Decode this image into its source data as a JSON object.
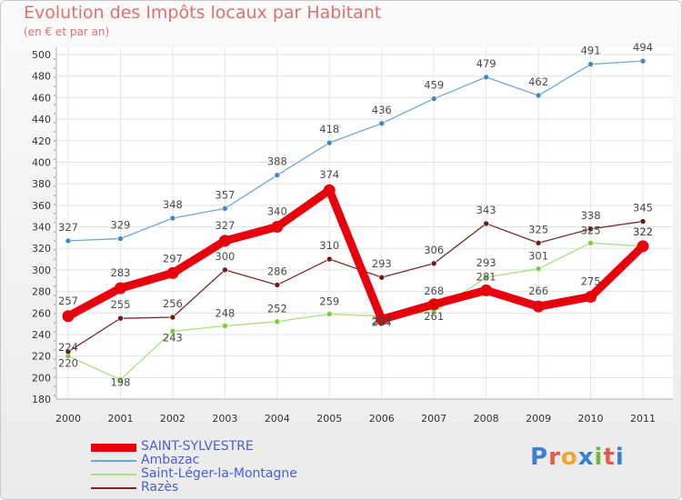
{
  "header": {
    "title": "Evolution des Impôts locaux par Habitant",
    "subtitle": "(en € et par an)"
  },
  "logo": {
    "text": "Proxiti",
    "colors": [
      "#3a7fd4",
      "#e85a4f",
      "#f2a533",
      "#3a7fd4",
      "#6fb83a",
      "#e85a4f",
      "#3a7fd4"
    ]
  },
  "chart_data": {
    "type": "line",
    "x": [
      "2000",
      "2001",
      "2002",
      "2003",
      "2004",
      "2005",
      "2006",
      "2007",
      "2008",
      "2009",
      "2010",
      "2011"
    ],
    "ylim": [
      180,
      500
    ],
    "yticks": [
      180,
      200,
      220,
      240,
      260,
      280,
      300,
      320,
      340,
      360,
      380,
      400,
      420,
      440,
      460,
      480,
      500
    ],
    "grid": true,
    "legend_position": "bottom",
    "series": [
      {
        "name": "SAINT-SYLVESTRE",
        "values": [
          257,
          283,
          297,
          327,
          340,
          374,
          254,
          268,
          281,
          266,
          275,
          322
        ],
        "color": "#e8000d",
        "marker": "#e8000d",
        "width": 9
      },
      {
        "name": "Ambazac",
        "values": [
          327,
          329,
          348,
          357,
          388,
          418,
          436,
          459,
          479,
          462,
          491,
          494
        ],
        "color": "#6fa6d8",
        "marker": "#3f88c8",
        "width": 1.3
      },
      {
        "name": "Saint-Léger-la-Montagne",
        "values": [
          220,
          198,
          243,
          248,
          252,
          259,
          257,
          261,
          293,
          301,
          325,
          322
        ],
        "color": "#a9e07c",
        "marker": "#7ccc3f",
        "width": 1.3
      },
      {
        "name": "Razès",
        "values": [
          224,
          255,
          256,
          300,
          286,
          310,
          293,
          306,
          343,
          325,
          338,
          345
        ],
        "color": "#7a2a2a",
        "marker": "#6a1c1c",
        "width": 1.3
      }
    ]
  }
}
